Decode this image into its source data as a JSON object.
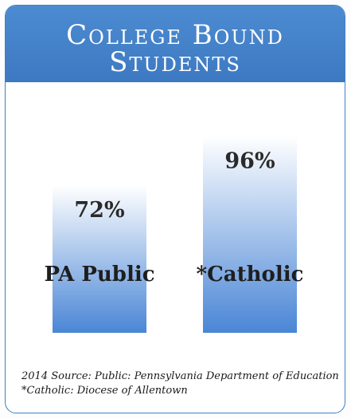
{
  "header": {
    "title_line1": "College Bound",
    "title_line2": "Students"
  },
  "chart_data": {
    "type": "bar",
    "title": "College Bound Students",
    "categories": [
      "PA Public",
      "*Catholic"
    ],
    "values": [
      72,
      96
    ],
    "value_labels": [
      "72%",
      "96%"
    ],
    "ylim": [
      0,
      100
    ],
    "grid": false,
    "colors": {
      "bar_top": "#ffffff",
      "bar_bottom": "#4a86d6",
      "banner": "#4c8bd1",
      "border": "#3f7fc6"
    }
  },
  "footer": {
    "source_line1": "2014 Source: Public: Pennsylvania Department of Education",
    "source_line2": "*Catholic: Diocese of Allentown"
  }
}
